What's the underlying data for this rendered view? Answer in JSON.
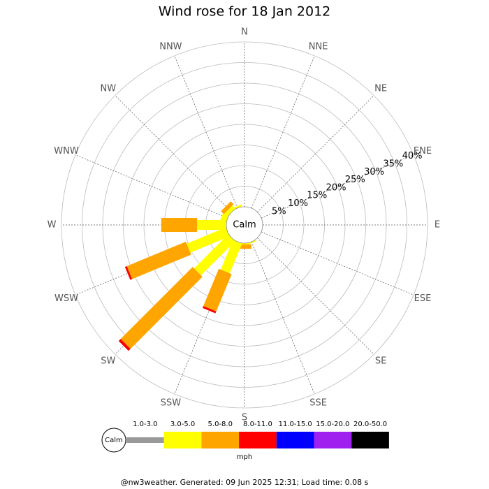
{
  "chart_data": {
    "type": "windrose",
    "title": "Wind rose for 18 Jan 2012",
    "categories": [
      "N",
      "NNE",
      "NE",
      "ENE",
      "E",
      "ESE",
      "SE",
      "SSE",
      "S",
      "SSW",
      "SW",
      "WSW",
      "W",
      "WNW",
      "NW",
      "NNW"
    ],
    "center_label": "Calm",
    "rlim": [
      0,
      40
    ],
    "rticks": [
      {
        "value": 5,
        "label": "5%"
      },
      {
        "value": 10,
        "label": "10%"
      },
      {
        "value": 15,
        "label": "15%"
      },
      {
        "value": 20,
        "label": "20%"
      },
      {
        "value": 25,
        "label": "25%"
      },
      {
        "value": 30,
        "label": "30%"
      },
      {
        "value": 35,
        "label": "35%"
      },
      {
        "value": 40,
        "label": "40%"
      }
    ],
    "legend_unit": "mph",
    "series": [
      {
        "name": "1.0-3.0",
        "color": "#999999",
        "values": [
          0,
          0,
          0,
          0,
          0,
          0,
          0,
          0,
          0,
          0,
          0,
          0,
          0,
          0,
          0,
          0
        ]
      },
      {
        "name": "3.0-5.0",
        "color": "#ffff00",
        "values": [
          0,
          0,
          0,
          0,
          0,
          0,
          0,
          0.3,
          0.3,
          7.8,
          11.7,
          10.3,
          7.1,
          1.5,
          1.0,
          0.5
        ]
      },
      {
        "name": "5.0-8.0",
        "color": "#ffa500",
        "values": [
          0,
          0,
          0,
          0,
          0,
          0,
          0,
          0,
          1.1,
          9.8,
          24.7,
          15.5,
          8.7,
          0,
          1.0,
          0
        ]
      },
      {
        "name": "8.0-11.0",
        "color": "#ff0000",
        "values": [
          0,
          0,
          0,
          0,
          0,
          0,
          0,
          0,
          0,
          0.5,
          0.7,
          0.5,
          0,
          0,
          0,
          0
        ]
      },
      {
        "name": "11.0-15.0",
        "color": "#0000ff",
        "values": [
          0,
          0,
          0,
          0,
          0,
          0,
          0,
          0,
          0,
          0,
          0,
          0,
          0,
          0,
          0,
          0
        ]
      },
      {
        "name": "15.0-20.0",
        "color": "#a020f0",
        "values": [
          0,
          0,
          0,
          0,
          0,
          0,
          0,
          0,
          0,
          0,
          0,
          0,
          0,
          0,
          0,
          0
        ]
      },
      {
        "name": "20.0-50.0",
        "color": "#000000",
        "values": [
          0,
          0,
          0,
          0,
          0,
          0,
          0,
          0,
          0,
          0,
          0,
          0,
          0,
          0,
          0,
          0
        ]
      }
    ]
  },
  "footer": "@nw3weather. Generated: 09 Jun 2025 12:31; Load time: 0.08 s"
}
